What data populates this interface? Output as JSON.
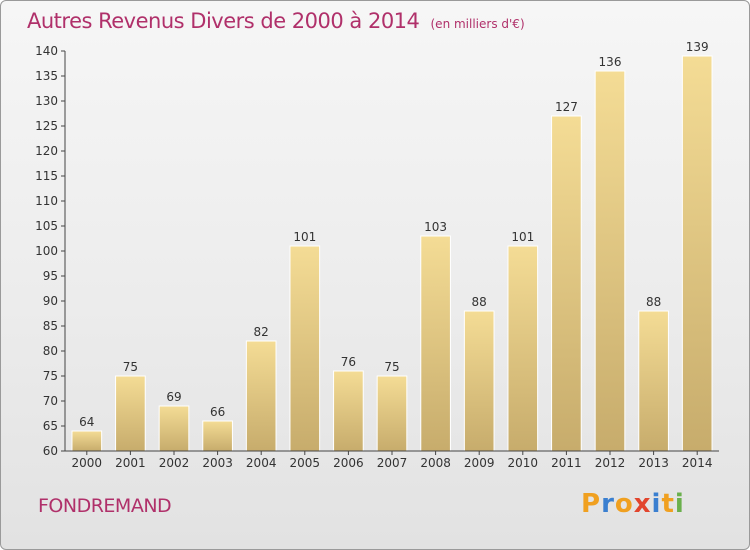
{
  "header": {
    "title": "Autres Revenus Divers de 2000 à 2014",
    "subtitle": "(en milliers d'€)"
  },
  "footer": {
    "commune": "FONDREMAND",
    "brand": "Proxiti"
  },
  "colors": {
    "title": "#b0306a",
    "bar_top": "#f4dc95",
    "bar_bottom": "#c7ac6c",
    "axis": "#444444",
    "brand_letters": [
      "#f0a020",
      "#3a7fd0",
      "#f0a020",
      "#e2452d",
      "#3a7fd0",
      "#f0a020",
      "#6ab04c"
    ]
  },
  "chart_data": {
    "type": "bar",
    "title": "Autres Revenus Divers de 2000 à 2014",
    "subtitle": "(en milliers d'€)",
    "xlabel": "",
    "ylabel": "",
    "ylim": [
      60,
      140
    ],
    "ytick_step": 5,
    "ytick_labels": [
      "60",
      "65",
      "70",
      "75",
      "80",
      "85",
      "90",
      "95",
      "100",
      "105",
      "110",
      "115",
      "120",
      "125",
      "130",
      "135",
      "140"
    ],
    "grid": false,
    "categories": [
      "2000",
      "2001",
      "2002",
      "2003",
      "2004",
      "2005",
      "2006",
      "2007",
      "2008",
      "2009",
      "2010",
      "2011",
      "2012",
      "2013",
      "2014"
    ],
    "values": [
      64,
      75,
      69,
      66,
      82,
      101,
      76,
      75,
      103,
      88,
      101,
      127,
      136,
      88,
      139
    ],
    "data_labels": [
      "64",
      "75",
      "69",
      "66",
      "82",
      "101",
      "76",
      "75",
      "103",
      "88",
      "101",
      "127",
      "136",
      "88",
      "139"
    ]
  }
}
